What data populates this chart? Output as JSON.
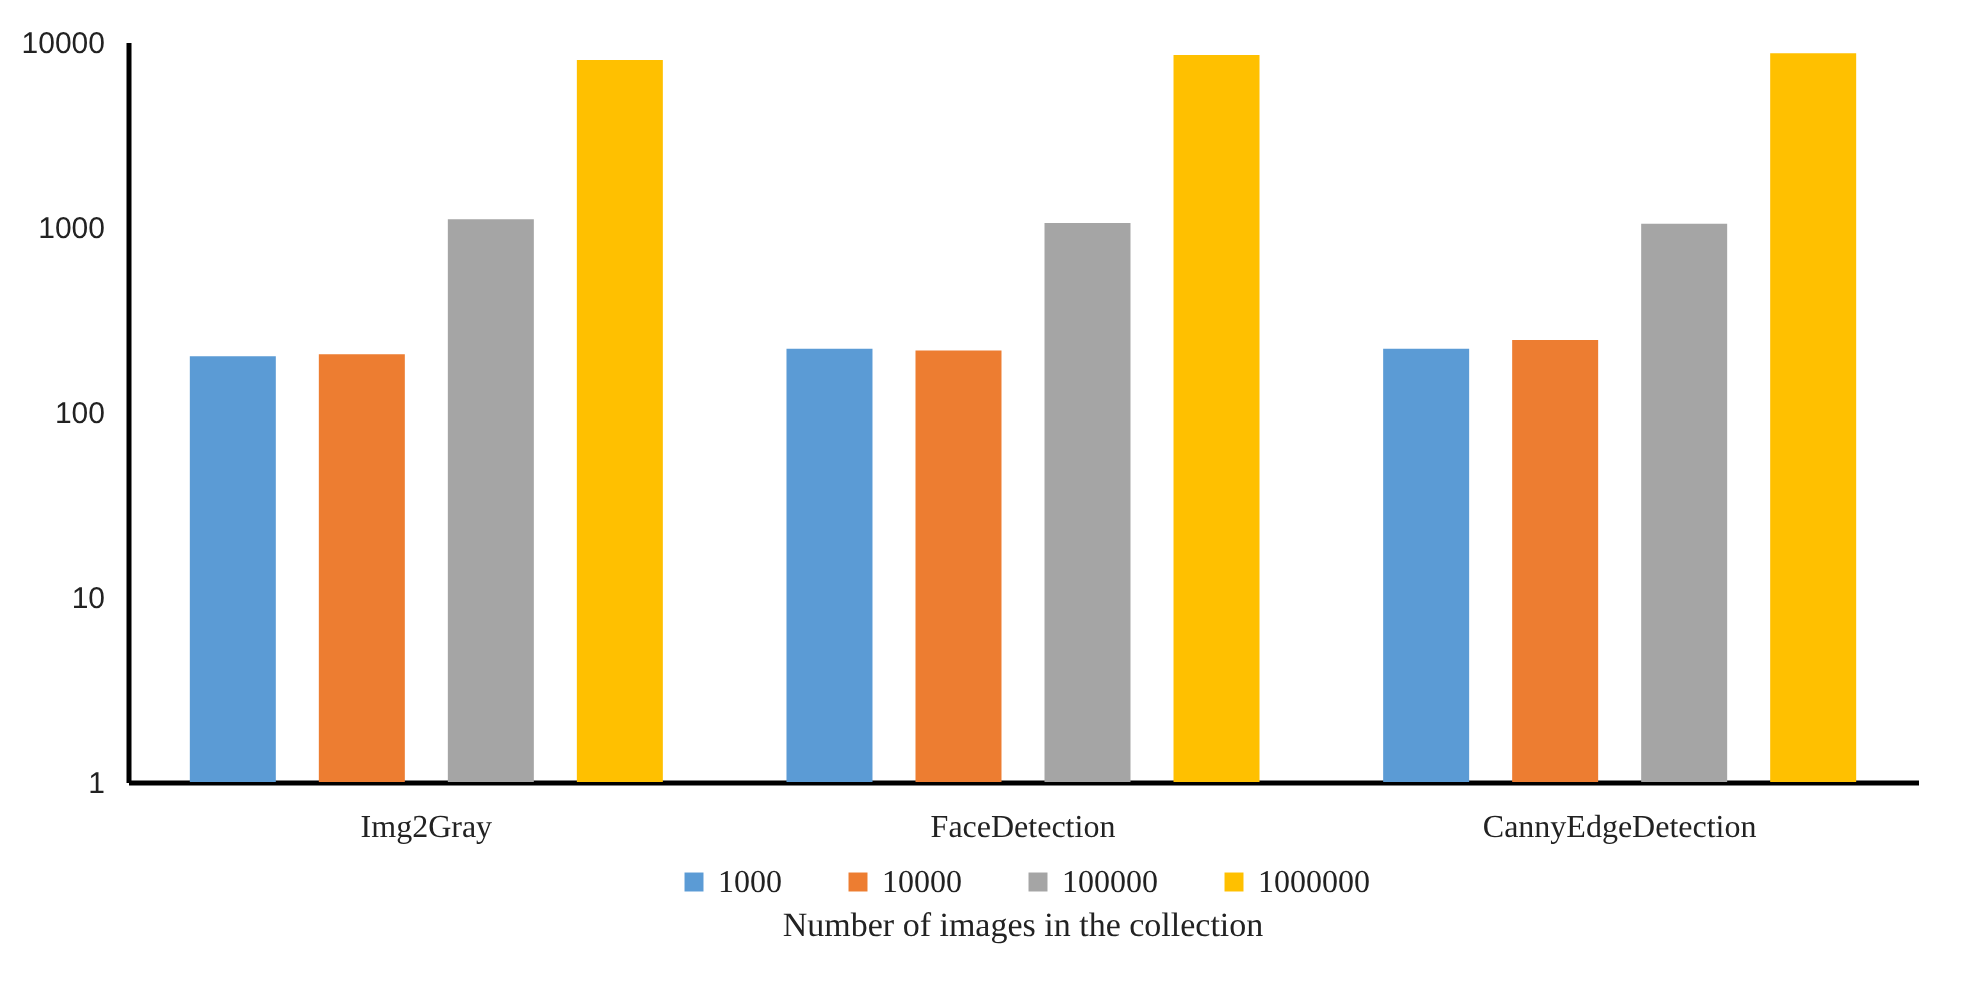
{
  "chart_data": {
    "type": "bar",
    "xlabel": "Number of images in the collection",
    "categories": [
      "Img2Gray",
      "FaceDetection",
      "CannyEdgeDetection"
    ],
    "series": [
      {
        "name": "1000",
        "color": "#5b9bd5",
        "values": [
          200,
          220,
          220
        ]
      },
      {
        "name": "10000",
        "color": "#ed7d31",
        "values": [
          205,
          215,
          245
        ]
      },
      {
        "name": "100000",
        "color": "#a5a5a5",
        "values": [
          1100,
          1050,
          1040
        ]
      },
      {
        "name": "1000000",
        "color": "#ffc000",
        "values": [
          8000,
          8500,
          8700
        ]
      }
    ],
    "log": true,
    "ylim": [
      1,
      10000
    ],
    "yticks": [
      1,
      10,
      100,
      1000,
      10000
    ],
    "grid": false,
    "legend": "bottom"
  }
}
